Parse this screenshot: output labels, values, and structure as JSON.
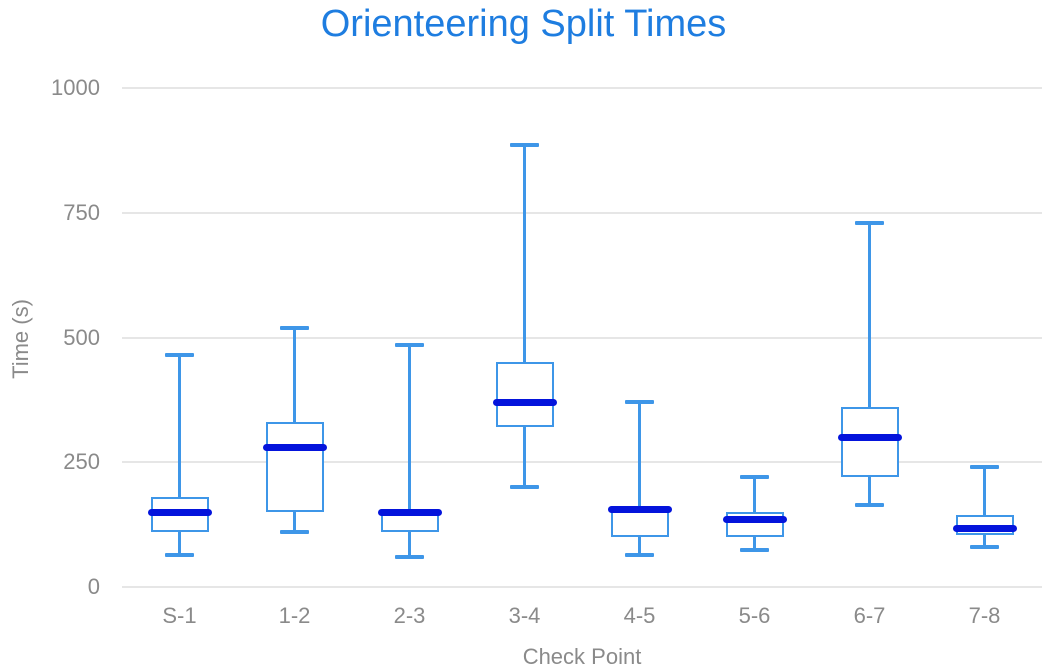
{
  "chart_data": {
    "type": "boxplot",
    "title": "Orienteering Split Times",
    "xlabel": "Check Point",
    "ylabel": "Time (s)",
    "categories": [
      "S-1",
      "1-2",
      "2-3",
      "3-4",
      "4-5",
      "5-6",
      "6-7",
      "7-8"
    ],
    "series": [
      {
        "name": "S-1",
        "min": 65,
        "q1": 110,
        "median": 150,
        "q3": 180,
        "max": 465
      },
      {
        "name": "1-2",
        "min": 110,
        "q1": 150,
        "median": 280,
        "q3": 330,
        "max": 520
      },
      {
        "name": "2-3",
        "min": 60,
        "q1": 110,
        "median": 150,
        "q3": 155,
        "max": 485
      },
      {
        "name": "3-4",
        "min": 200,
        "q1": 320,
        "median": 370,
        "q3": 450,
        "max": 885
      },
      {
        "name": "4-5",
        "min": 65,
        "q1": 100,
        "median": 155,
        "q3": 160,
        "max": 370
      },
      {
        "name": "5-6",
        "min": 75,
        "q1": 100,
        "median": 135,
        "q3": 150,
        "max": 220
      },
      {
        "name": "6-7",
        "min": 165,
        "q1": 220,
        "median": 300,
        "q3": 360,
        "max": 730
      },
      {
        "name": "7-8",
        "min": 80,
        "q1": 105,
        "median": 118,
        "q3": 145,
        "max": 240
      }
    ],
    "ylim": [
      0,
      1000
    ],
    "yticks": [
      0,
      250,
      500,
      750,
      1000
    ],
    "grid": true,
    "legend": "none",
    "colors": {
      "title": "#1E7DE0",
      "box_stroke": "#3E96E8",
      "median": "#0414DC",
      "gridline": "#E6E6E6",
      "tick_text": "#8A8A8A",
      "axis_title_text": "#8A8A8A",
      "background": "#FFFFFF"
    }
  }
}
